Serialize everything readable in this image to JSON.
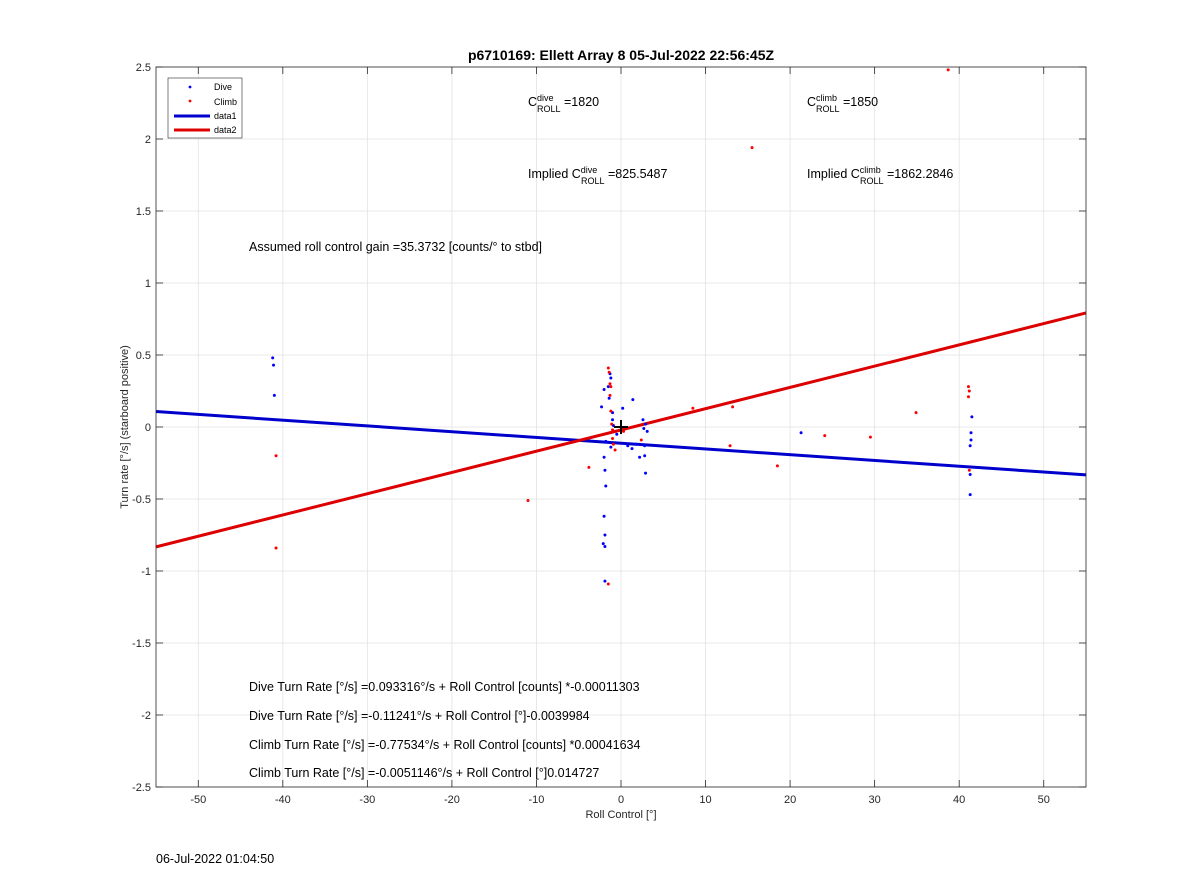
{
  "chart_data": {
    "type": "scatter",
    "title": "p6710169: Ellett Array 8 05-Jul-2022 22:56:45Z",
    "xlabel": "Roll Control [°]",
    "ylabel": "Turn rate [°/s] (starboard positive)",
    "xlim": [
      -55,
      55
    ],
    "ylim": [
      -2.5,
      2.5
    ],
    "xticks": [
      -50,
      -40,
      -30,
      -20,
      -10,
      0,
      10,
      20,
      30,
      40,
      50
    ],
    "yticks": [
      -2.5,
      -2,
      -1.5,
      -1,
      -0.5,
      0,
      0.5,
      1,
      1.5,
      2,
      2.5
    ],
    "xtick_labels": [
      "-50",
      "-40",
      "-30",
      "-20",
      "-10",
      "0",
      "10",
      "20",
      "30",
      "40",
      "50"
    ],
    "ytick_labels": [
      "-2.5",
      "-2",
      "-1.5",
      "-1",
      "-0.5",
      "0",
      "0.5",
      "1",
      "1.5",
      "2",
      "2.5"
    ],
    "grid": true,
    "legend_position": "top-left",
    "series": [
      {
        "name": "Dive",
        "kind": "points",
        "color": "#0000ff",
        "points": [
          [
            -41.2,
            0.48
          ],
          [
            -41.1,
            0.43
          ],
          [
            -41.0,
            0.22
          ],
          [
            -2.3,
            0.14
          ],
          [
            -2.0,
            0.26
          ],
          [
            -1.5,
            0.28
          ],
          [
            -1.4,
            0.2
          ],
          [
            -1.3,
            0.37
          ],
          [
            -1.2,
            0.34
          ],
          [
            -1.0,
            0.1
          ],
          [
            -0.9,
            0.01
          ],
          [
            -0.5,
            -0.05
          ],
          [
            0.2,
            0.13
          ],
          [
            0.8,
            -0.13
          ],
          [
            1.3,
            -0.15
          ],
          [
            1.4,
            0.19
          ],
          [
            1.8,
            -0.12
          ],
          [
            2.2,
            -0.21
          ],
          [
            2.6,
            0.05
          ],
          [
            2.7,
            -0.01
          ],
          [
            2.8,
            -0.13
          ],
          [
            2.8,
            -0.2
          ],
          [
            2.9,
            -0.32
          ],
          [
            2.9,
            0.02
          ],
          [
            3.1,
            -0.03
          ],
          [
            -1.8,
            -0.1
          ],
          [
            -1.9,
            -0.3
          ],
          [
            -1.8,
            -0.41
          ],
          [
            -2.0,
            -0.62
          ],
          [
            -1.9,
            -0.75
          ],
          [
            -2.1,
            -0.81
          ],
          [
            -1.9,
            -0.83
          ],
          [
            -1.9,
            -1.07
          ],
          [
            -2.0,
            -0.21
          ],
          [
            -1.2,
            -0.14
          ],
          [
            -1.0,
            0.05
          ],
          [
            21.3,
            -0.04
          ],
          [
            41.5,
            0.07
          ],
          [
            41.4,
            -0.04
          ],
          [
            41.4,
            -0.09
          ],
          [
            41.3,
            -0.13
          ],
          [
            41.3,
            -0.33
          ],
          [
            41.3,
            -0.47
          ]
        ]
      },
      {
        "name": "Climb",
        "kind": "points",
        "color": "#ff0000",
        "points": [
          [
            -40.8,
            -0.2
          ],
          [
            -40.8,
            -0.84
          ],
          [
            -11.0,
            -0.51
          ],
          [
            -3.8,
            -0.28
          ],
          [
            -1.5,
            0.41
          ],
          [
            -1.4,
            0.38
          ],
          [
            -1.3,
            0.3
          ],
          [
            -1.2,
            0.28
          ],
          [
            -1.3,
            0.22
          ],
          [
            -1.2,
            0.11
          ],
          [
            -1.1,
            0.02
          ],
          [
            -1.0,
            -0.02
          ],
          [
            -1.0,
            -0.08
          ],
          [
            -0.9,
            -0.12
          ],
          [
            -0.7,
            -0.16
          ],
          [
            -1.5,
            -1.09
          ],
          [
            0.3,
            -0.03
          ],
          [
            2.4,
            -0.09
          ],
          [
            8.5,
            0.13
          ],
          [
            12.9,
            -0.13
          ],
          [
            13.2,
            0.14
          ],
          [
            15.5,
            1.94
          ],
          [
            18.5,
            -0.27
          ],
          [
            24.1,
            -0.06
          ],
          [
            29.5,
            -0.07
          ],
          [
            34.9,
            0.1
          ],
          [
            38.7,
            2.48
          ],
          [
            41.1,
            0.28
          ],
          [
            41.2,
            0.25
          ],
          [
            41.1,
            0.21
          ],
          [
            41.2,
            -0.3
          ]
        ]
      },
      {
        "name": "data1",
        "kind": "line",
        "color": "#0000cc",
        "x": [
          -55,
          55
        ],
        "y": [
          0.1074,
          -0.3324
        ]
      },
      {
        "name": "data2",
        "kind": "line",
        "color": "#dd0000",
        "x": [
          -55,
          55
        ],
        "y": [
          -0.8325,
          0.7919
        ]
      }
    ],
    "marker": {
      "x": 0,
      "y": 0
    },
    "annotations": {
      "cdive": {
        "base": "C",
        "sup": "dive",
        "sub": "ROLL",
        "text": " =1820"
      },
      "cclimb": {
        "base": "C",
        "sup": "climb",
        "sub": "ROLL",
        "text": " =1850"
      },
      "implied_dive": {
        "prefix": "Implied C",
        "sup": "dive",
        "sub": "ROLL",
        "text": " =825.5487"
      },
      "implied_climb": {
        "prefix": "Implied C",
        "sup": "climb",
        "sub": "ROLL",
        "text": " =1862.2846"
      },
      "gain": "Assumed roll control gain =35.3732 [counts/° to stbd]",
      "eq1": "Dive Turn Rate [°/s] =0.093316°/s + Roll Control [counts] *-0.00011303",
      "eq2": "Dive Turn Rate [°/s] =-0.11241°/s + Roll Control [°]-0.0039984",
      "eq3": "Climb Turn Rate [°/s] =-0.77534°/s + Roll Control [counts] *0.00041634",
      "eq4": "Climb Turn Rate [°/s] =-0.0051146°/s + Roll Control [°]0.014727"
    }
  },
  "timestamp": "06-Jul-2022 01:04:50"
}
